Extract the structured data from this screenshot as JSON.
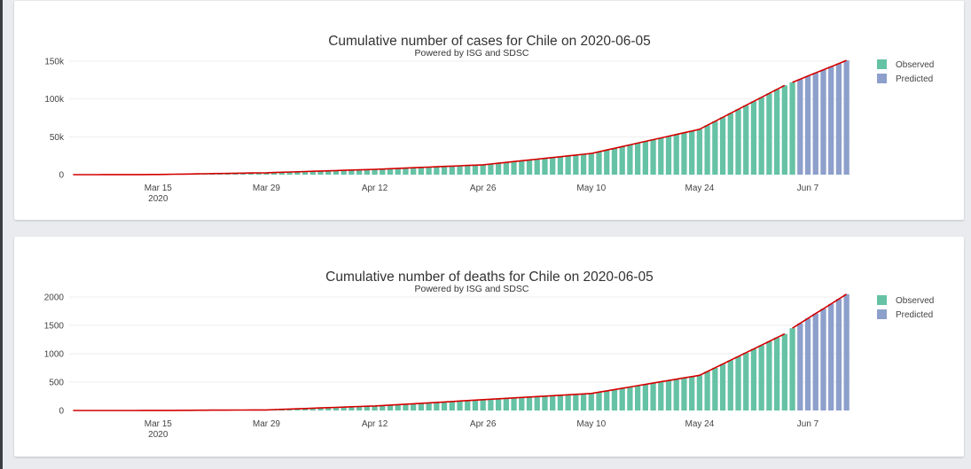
{
  "colors": {
    "observed": "#66c2a5",
    "predicted": "#8da0cb",
    "trend": "#d40000",
    "grid": "#eeeeee"
  },
  "chart_data": [
    {
      "type": "bar",
      "title": "Cumulative number of cases for Chile on 2020-06-05",
      "subtitle": "Powered by ISG and SDSC",
      "legend_position": "top-right",
      "legend": [
        "Observed",
        "Predicted"
      ],
      "x_start": "2020-03-04",
      "x_end": "2020-06-12",
      "split_date": "2020-06-05",
      "x_tick_labels": [
        "Mar 15",
        "Mar 29",
        "Apr 12",
        "Apr 26",
        "May 10",
        "May 24",
        "Jun 7"
      ],
      "x_tick_sublabel": "2020",
      "y_ticks": [
        0,
        50000,
        100000,
        150000
      ],
      "y_tick_labels": [
        "0",
        "50k",
        "100k",
        "150k"
      ],
      "ylim": [
        0,
        150000
      ],
      "grid": true,
      "anchors": [
        [
          "2020-03-04",
          0
        ],
        [
          "2020-03-15",
          200
        ],
        [
          "2020-03-29",
          2500
        ],
        [
          "2020-04-12",
          7000
        ],
        [
          "2020-04-26",
          13000
        ],
        [
          "2020-05-10",
          28000
        ],
        [
          "2020-05-24",
          60000
        ],
        [
          "2020-06-04",
          118000
        ],
        [
          "2020-06-05",
          122000
        ],
        [
          "2020-06-12",
          151000
        ]
      ]
    },
    {
      "type": "bar",
      "title": "Cumulative number of deaths for Chile on 2020-06-05",
      "subtitle": "Powered by ISG and SDSC",
      "legend_position": "top-right",
      "legend": [
        "Observed",
        "Predicted"
      ],
      "x_start": "2020-03-04",
      "x_end": "2020-06-12",
      "split_date": "2020-06-05",
      "x_tick_labels": [
        "Mar 15",
        "Mar 29",
        "Apr 12",
        "Apr 26",
        "May 10",
        "May 24",
        "Jun 7"
      ],
      "x_tick_sublabel": "2020",
      "y_ticks": [
        0,
        500,
        1000,
        1500,
        2000
      ],
      "y_tick_labels": [
        "0",
        "500",
        "1000",
        "1500",
        "2000"
      ],
      "ylim": [
        0,
        2000
      ],
      "grid": true,
      "anchors": [
        [
          "2020-03-04",
          0
        ],
        [
          "2020-03-15",
          1
        ],
        [
          "2020-03-29",
          10
        ],
        [
          "2020-04-12",
          80
        ],
        [
          "2020-04-26",
          190
        ],
        [
          "2020-05-10",
          300
        ],
        [
          "2020-05-24",
          620
        ],
        [
          "2020-06-04",
          1350
        ],
        [
          "2020-06-05",
          1450
        ],
        [
          "2020-06-12",
          2050
        ]
      ]
    }
  ]
}
